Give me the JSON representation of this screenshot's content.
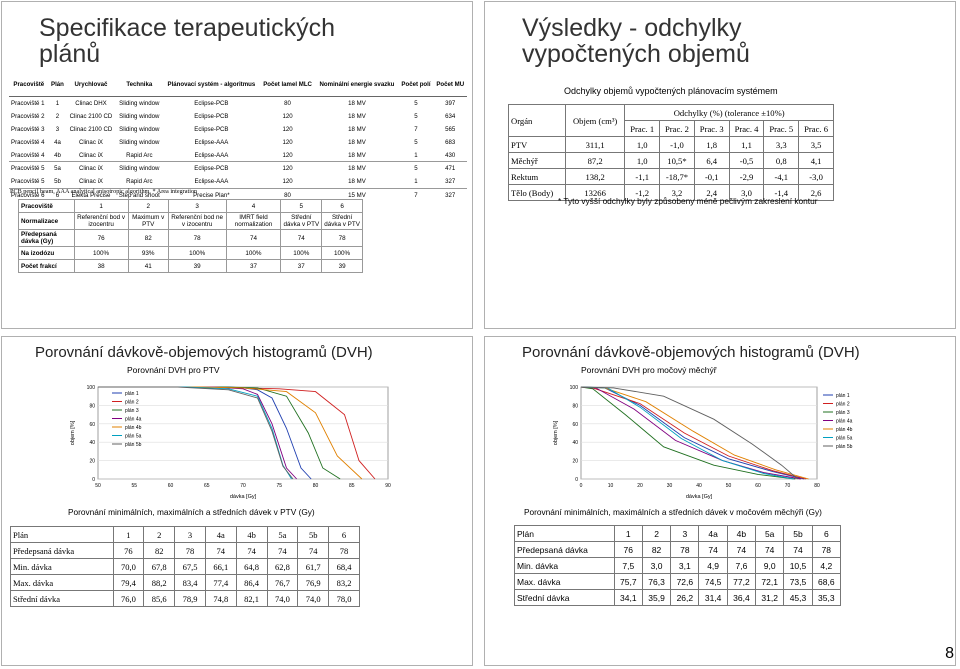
{
  "slide1": {
    "title": "Specifikace terapeutických plánů",
    "table_headers": [
      "Pracoviště",
      "Plán",
      "Urychlovač",
      "Technika",
      "Plánovací systém - algoritmus",
      "Počet lamel MLC",
      "Nominální energie svazku",
      "Počet polí",
      "Počet MU"
    ],
    "table_rows": [
      [
        "Pracoviště 1",
        "1",
        "Clinac DHX",
        "Sliding window",
        "Eclipse-PCB",
        "80",
        "18 MV",
        "5",
        "397"
      ],
      [
        "Pracoviště 2",
        "2",
        "Clinac 2100 CD",
        "Sliding window",
        "Eclipse-PCB",
        "120",
        "18 MV",
        "5",
        "634"
      ],
      [
        "Pracoviště 3",
        "3",
        "Clinac 2100 CD",
        "Sliding window",
        "Eclipse-PCB",
        "120",
        "18 MV",
        "7",
        "565"
      ],
      [
        "Pracoviště 4",
        "4a",
        "Clinac iX",
        "Sliding window",
        "Eclipse-AAA",
        "120",
        "18 MV",
        "5",
        "683"
      ],
      [
        "Pracoviště 4",
        "4b",
        "Clinac iX",
        "Rapid Arc",
        "Eclipse-AAA",
        "120",
        "18 MV",
        "1",
        "430"
      ],
      [
        "Pracoviště 5",
        "5a",
        "Clinac iX",
        "Sliding window",
        "Eclipse-PCB",
        "120",
        "18 MV",
        "5",
        "471"
      ],
      [
        "Pracoviště 5",
        "5b",
        "Clinac iX",
        "Rapid Arc",
        "Eclipse-AAA",
        "120",
        "18 MV",
        "1",
        "327"
      ],
      [
        "Pracoviště 6",
        "6",
        "Elekta Precise",
        "Step and shoot",
        "Precise Plan*",
        "80",
        "15 MV",
        "7",
        "327"
      ]
    ],
    "footnote": "PCB pencil beam, AAA analytical anisotropic algorithm, * Area integration",
    "table2_rows": [
      [
        "Pracoviště",
        "1",
        "2",
        "3",
        "4",
        "5",
        "6"
      ],
      [
        "Normalizace",
        "Referenční bod v izocentru",
        "Maximum v PTV",
        "Referenční bod ne v izocentru",
        "IMRT field normalization",
        "Střední dávka v PTV",
        "Střední dávka v PTV"
      ],
      [
        "Předepsaná dávka (Gy)",
        "76",
        "82",
        "78",
        "74",
        "74",
        "78"
      ],
      [
        "Na izodózu",
        "100%",
        "93%",
        "100%",
        "100%",
        "100%",
        "100%"
      ],
      [
        "Počet frakcí",
        "38",
        "41",
        "39",
        "37",
        "37",
        "39"
      ]
    ]
  },
  "slide2": {
    "title": "Výsledky - odchylky vypočtených objemů",
    "subtitle": "Odchylky objemů vypočtených plánovacím systémem",
    "header_organ": "Orgán",
    "header_volume": "Objem (cm³)",
    "header_dev": "Odchylky (%) (tolerance ±10%)",
    "plan_cols": [
      "Prac. 1",
      "Prac. 2",
      "Prac. 3",
      "Prac. 4",
      "Prac. 5",
      "Prac. 6"
    ],
    "rows": [
      [
        "PTV",
        "311,1",
        "1,0",
        "-1,0",
        "1,8",
        "1,1",
        "3,3",
        "3,5"
      ],
      [
        "Měchýř",
        "87,2",
        "1,0",
        "10,5*",
        "6,4",
        "-0,5",
        "0,8",
        "4,1"
      ],
      [
        "Rektum",
        "138,2",
        "-1,1",
        "-18,7*",
        "-0,1",
        "-2,9",
        "-4,1",
        "-3,0"
      ],
      [
        "Tělo (Body)",
        "13266",
        "-1,2",
        "3,2",
        "2,4",
        "3,0",
        "-1,4",
        "2,6"
      ]
    ],
    "note": "* Tyto vyšší odchylky byly způsobeny méně pečlivým zakreslení kontur"
  },
  "slide3": {
    "title": "Porovnání dávkově-objemových histogramů (DVH)",
    "chart_title": "Porovnání DVH pro PTV",
    "table_title": "Porovnání minimálních, maximálních a středních dávek v PTV (Gy)",
    "table_rows": [
      [
        "Plán",
        "1",
        "2",
        "3",
        "4a",
        "4b",
        "5a",
        "5b",
        "6"
      ],
      [
        "Předepsaná dávka",
        "76",
        "82",
        "78",
        "74",
        "74",
        "74",
        "74",
        "78"
      ],
      [
        "Min. dávka",
        "70,0",
        "67,8",
        "67,5",
        "66,1",
        "64,8",
        "62,8",
        "61,7",
        "68,4"
      ],
      [
        "Max. dávka",
        "79,4",
        "88,2",
        "83,4",
        "77,4",
        "86,4",
        "76,7",
        "76,9",
        "83,2"
      ],
      [
        "Střední dávka",
        "76,0",
        "85,6",
        "78,9",
        "74,8",
        "82,1",
        "74,0",
        "74,0",
        "78,0"
      ]
    ]
  },
  "slide4": {
    "title": "Porovnání dávkově-objemových histogramů (DVH)",
    "chart_title": "Porovnání DVH pro močový měchýř",
    "table_title": "Porovnání minimálních, maximálních a středních dávek v močovém měchýři (Gy)",
    "table_rows": [
      [
        "Plán",
        "1",
        "2",
        "3",
        "4a",
        "4b",
        "5a",
        "5b",
        "6"
      ],
      [
        "Předepsaná dávka",
        "76",
        "82",
        "78",
        "74",
        "74",
        "74",
        "74",
        "78"
      ],
      [
        "Min. dávka",
        "7,5",
        "3,0",
        "3,1",
        "4,9",
        "7,6",
        "9,0",
        "10,5",
        "4,2"
      ],
      [
        "Max. dávka",
        "75,7",
        "76,3",
        "72,6",
        "74,5",
        "77,2",
        "72,1",
        "73,5",
        "68,6"
      ],
      [
        "Střední dávka",
        "34,1",
        "35,9",
        "26,2",
        "31,4",
        "36,4",
        "31,2",
        "45,3",
        "35,3"
      ]
    ]
  },
  "page_number": "8",
  "chart_data": [
    {
      "type": "line",
      "title": "Porovnání DVH pro PTV",
      "xlabel": "dávka [Gy]",
      "ylabel": "objem [%]",
      "xlim": [
        50,
        90
      ],
      "ylim": [
        0,
        100
      ],
      "x_ticks": [
        "50",
        "55",
        "60",
        "65",
        "70",
        "75",
        "80",
        "85",
        "90"
      ],
      "y_ticks": [
        "0",
        "20",
        "40",
        "60",
        "80",
        "100"
      ],
      "legend": [
        "plán 1",
        "plán 2",
        "plán 3",
        "plán 4a",
        "plán 4b",
        "plán 5a",
        "plán 5b"
      ],
      "legend_position": "top-left",
      "colors": [
        "#1f3fb0",
        "#d02020",
        "#207020",
        "#800080",
        "#e08000",
        "#00a0c0",
        "#606060"
      ],
      "series": [
        {
          "name": "plán 1",
          "x": [
            50,
            68,
            70,
            72,
            74,
            76,
            78,
            79.4
          ],
          "y": [
            100,
            100,
            99,
            97,
            88,
            55,
            12,
            0
          ]
        },
        {
          "name": "plán 2",
          "x": [
            50,
            66,
            70,
            75,
            80,
            84,
            86,
            88.2
          ],
          "y": [
            100,
            100,
            99,
            98,
            95,
            70,
            20,
            0
          ]
        },
        {
          "name": "plán 3",
          "x": [
            50,
            67,
            72,
            76,
            79,
            81,
            83.4
          ],
          "y": [
            100,
            100,
            99,
            90,
            50,
            12,
            0
          ]
        },
        {
          "name": "plán 4a",
          "x": [
            50,
            66,
            70,
            72,
            74,
            76,
            77.4
          ],
          "y": [
            100,
            100,
            98,
            92,
            60,
            12,
            0
          ]
        },
        {
          "name": "plán 4b",
          "x": [
            50,
            64,
            70,
            76,
            80,
            83,
            86.4
          ],
          "y": [
            100,
            100,
            99,
            95,
            72,
            25,
            0
          ]
        },
        {
          "name": "plán 5a",
          "x": [
            50,
            62,
            68,
            72,
            74,
            75.5,
            76.7
          ],
          "y": [
            100,
            100,
            98,
            90,
            55,
            15,
            0
          ]
        },
        {
          "name": "plán 5b",
          "x": [
            50,
            61,
            68,
            72,
            74,
            75.5,
            76.9
          ],
          "y": [
            100,
            100,
            97,
            88,
            52,
            14,
            0
          ]
        }
      ]
    },
    {
      "type": "line",
      "title": "Porovnání DVH pro močový měchýř",
      "xlabel": "dávka [Gy]",
      "ylabel": "objem [%]",
      "xlim": [
        0,
        80
      ],
      "ylim": [
        0,
        100
      ],
      "x_ticks": [
        "0",
        "10",
        "20",
        "30",
        "40",
        "50",
        "60",
        "70",
        "80"
      ],
      "y_ticks": [
        "0",
        "20",
        "40",
        "60",
        "80",
        "100"
      ],
      "legend": [
        "plán 1",
        "plán 2",
        "plán 3",
        "plán 4a",
        "plán 4b",
        "plán 5a",
        "plán 5b"
      ],
      "legend_position": "right",
      "colors": [
        "#1f3fb0",
        "#d02020",
        "#207020",
        "#800080",
        "#e08000",
        "#00a0c0",
        "#606060"
      ],
      "series": [
        {
          "name": "plán 1",
          "x": [
            0,
            8,
            20,
            35,
            50,
            65,
            75.7
          ],
          "y": [
            100,
            99,
            80,
            45,
            22,
            8,
            0
          ]
        },
        {
          "name": "plán 2",
          "x": [
            0,
            4,
            20,
            35,
            50,
            65,
            76.3
          ],
          "y": [
            100,
            99,
            82,
            50,
            25,
            9,
            0
          ]
        },
        {
          "name": "plán 3",
          "x": [
            0,
            4,
            15,
            28,
            45,
            60,
            72.6
          ],
          "y": [
            100,
            98,
            70,
            35,
            15,
            5,
            0
          ]
        },
        {
          "name": "plán 4a",
          "x": [
            0,
            5,
            18,
            32,
            48,
            62,
            74.5
          ],
          "y": [
            100,
            99,
            76,
            42,
            20,
            7,
            0
          ]
        },
        {
          "name": "plán 4b",
          "x": [
            0,
            8,
            22,
            38,
            52,
            66,
            77.2
          ],
          "y": [
            100,
            99,
            84,
            52,
            26,
            10,
            0
          ]
        },
        {
          "name": "plán 5a",
          "x": [
            0,
            9,
            20,
            34,
            48,
            62,
            72.1
          ],
          "y": [
            100,
            99,
            78,
            44,
            20,
            6,
            0
          ]
        },
        {
          "name": "plán 5b",
          "x": [
            0,
            11,
            28,
            45,
            58,
            68,
            73.5
          ],
          "y": [
            100,
            99,
            90,
            65,
            38,
            15,
            0
          ]
        }
      ]
    }
  ]
}
